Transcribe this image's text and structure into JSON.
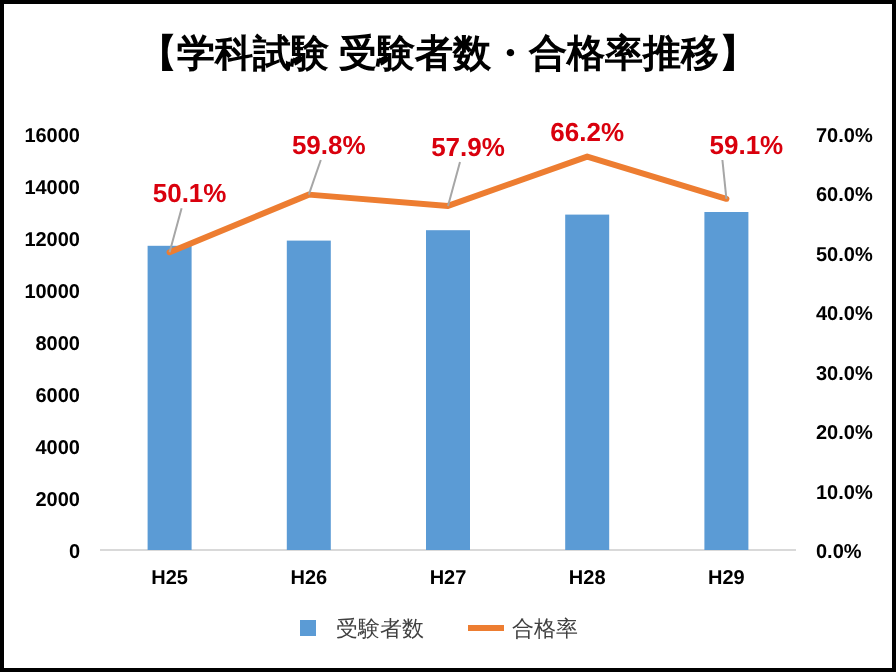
{
  "chart_data": {
    "type": "bar",
    "title": "【学科試験 受験者数・合格率推移】",
    "categories": [
      "H25",
      "H26",
      "H27",
      "H28",
      "H29"
    ],
    "series": [
      {
        "name": "受験者数",
        "color": "#5b9bd5",
        "values": [
          11700,
          11900,
          12300,
          12900,
          13000
        ]
      },
      {
        "name": "合格率",
        "type": "line",
        "axis": "y2",
        "color": "#ed7d31",
        "values": [
          50.1,
          59.8,
          57.9,
          66.2,
          59.1
        ],
        "value_labels": [
          "50.1%",
          "59.8%",
          "57.9%",
          "66.2%",
          "59.1%"
        ]
      }
    ],
    "ylim": [
      0,
      16000
    ],
    "yticks": [
      0,
      2000,
      4000,
      6000,
      8000,
      10000,
      12000,
      14000,
      16000
    ],
    "y2lim": [
      0,
      70
    ],
    "y2ticks": [
      {
        "value": 0,
        "label": "0.0%"
      },
      {
        "value": 10,
        "label": "10.0%"
      },
      {
        "value": 20,
        "label": "20.0%"
      },
      {
        "value": 30,
        "label": "30.0%"
      },
      {
        "value": 40,
        "label": "40.0%"
      },
      {
        "value": 50,
        "label": "50.0%"
      },
      {
        "value": 60,
        "label": "60.0%"
      },
      {
        "value": 70,
        "label": "70.0%"
      }
    ],
    "grid": false,
    "legend": "bottom",
    "marker": "none",
    "line_style": "solid"
  }
}
